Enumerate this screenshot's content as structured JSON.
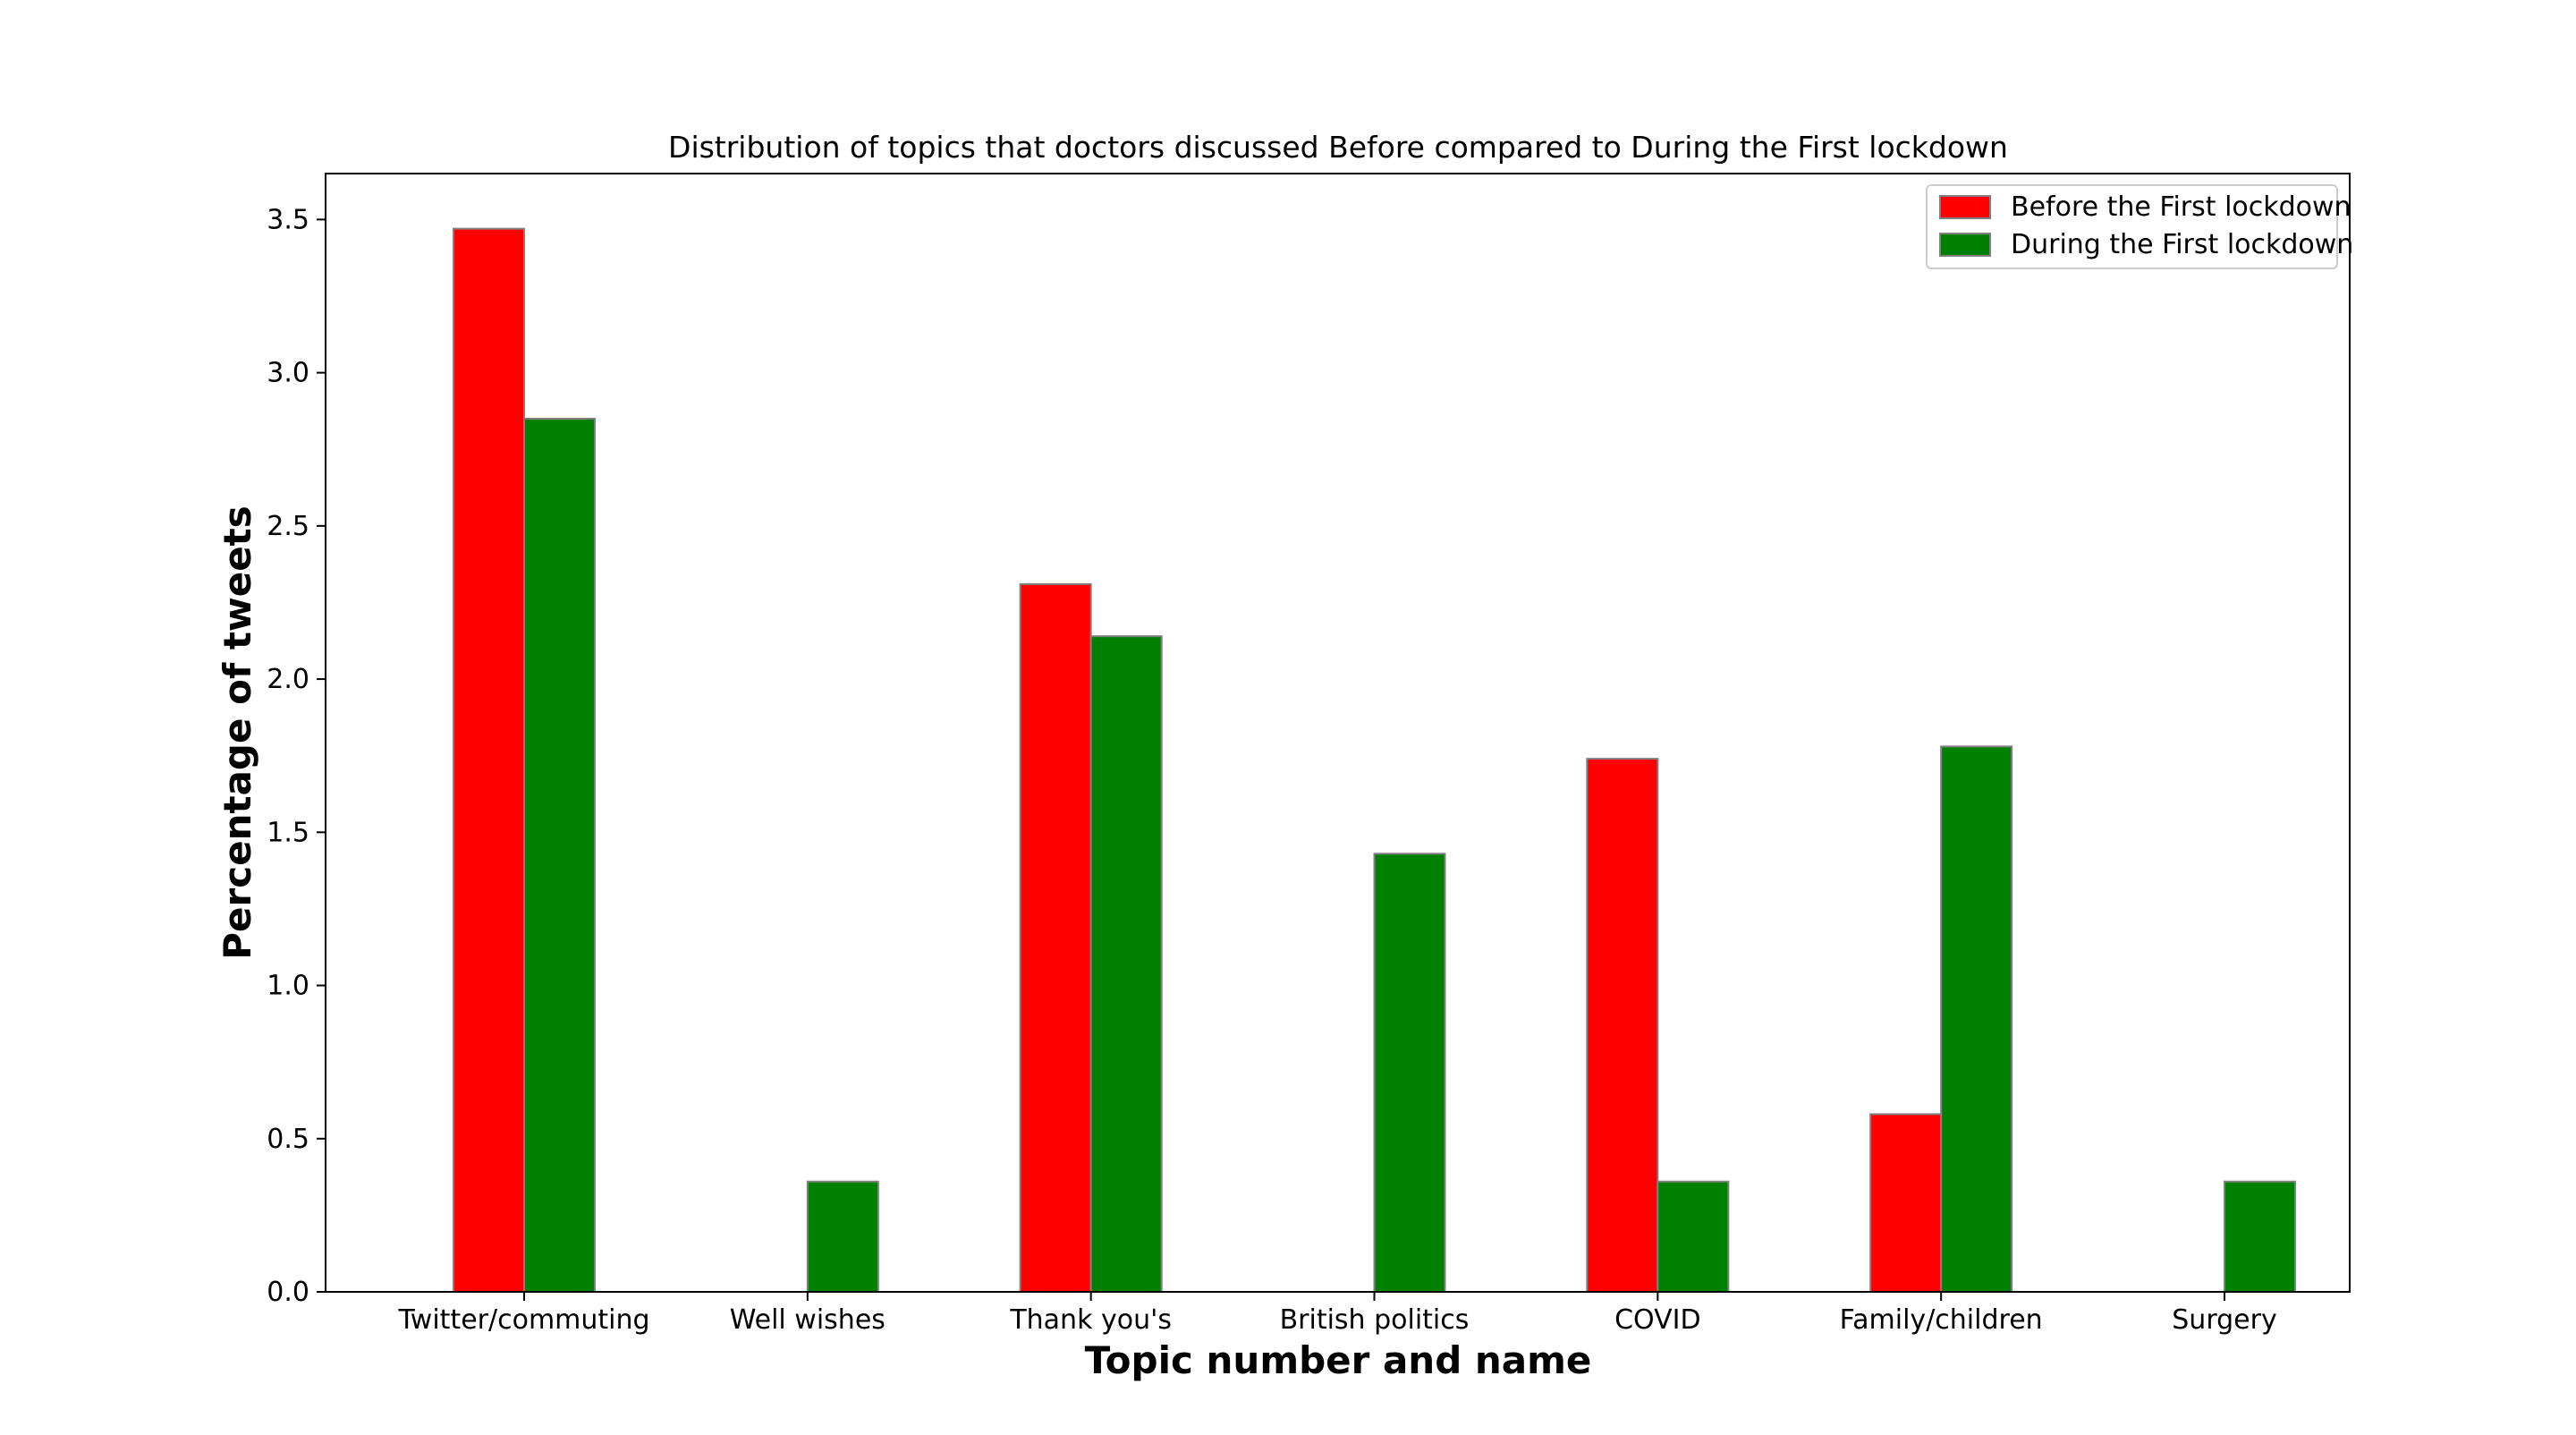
{
  "chart_data": {
    "type": "bar",
    "title": "Distribution of topics that doctors discussed Before compared to During the First lockdown",
    "xlabel": "Topic number and name",
    "ylabel": "Percentage of tweets",
    "categories": [
      "Twitter/commuting",
      "Well wishes",
      "Thank you's",
      "British politics",
      "COVID",
      "Family/children",
      "Surgery"
    ],
    "series": [
      {
        "name": "Before the First lockdown",
        "color": "#ff0000",
        "values": [
          3.47,
          0.0,
          2.31,
          0.0,
          1.74,
          0.58,
          0.0
        ]
      },
      {
        "name": "During the First lockdown",
        "color": "#008000",
        "values": [
          2.85,
          0.36,
          2.14,
          1.43,
          0.36,
          1.78,
          0.36
        ]
      }
    ],
    "ylim": [
      0,
      3.65
    ],
    "yticks": [
      "0.0",
      "0.5",
      "1.0",
      "1.5",
      "2.0",
      "2.5",
      "3.0",
      "3.5"
    ],
    "grid": false,
    "legend_position": "top-right",
    "bar_edge_color": "#808080"
  }
}
